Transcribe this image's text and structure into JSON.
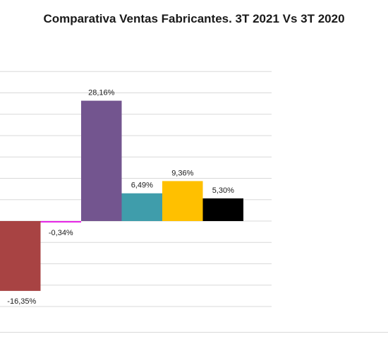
{
  "chart_data": {
    "type": "bar",
    "title": "Comparativa Ventas Fabricantes. 3T 2021 Vs 3T 2020",
    "xlabel": "",
    "ylabel": "",
    "grid": true,
    "legend": "none",
    "bars": [
      {
        "value": -16.35,
        "label": "-16,35%",
        "color": "#A84343"
      },
      {
        "value": -0.34,
        "label": "-0,34%",
        "color": "#E62BE6"
      },
      {
        "value": 28.16,
        "label": "28,16%",
        "color": "#73558F"
      },
      {
        "value": 6.49,
        "label": "6,49%",
        "color": "#3F9DAB"
      },
      {
        "value": 9.36,
        "label": "9,36%",
        "color": "#FFC000"
      },
      {
        "value": 5.3,
        "label": "5,30%",
        "color": "#000000"
      }
    ],
    "ylim": [
      -20,
      35
    ]
  }
}
